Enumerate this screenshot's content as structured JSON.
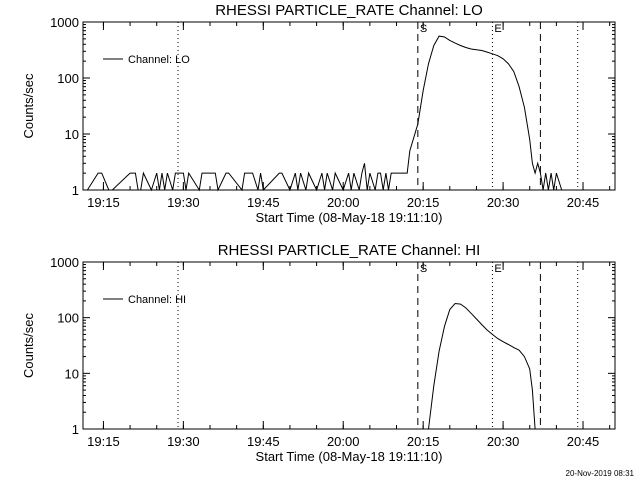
{
  "footer": {
    "timestamp": "20-Nov-2019 08:31"
  },
  "chart_data": [
    {
      "type": "line",
      "title": "RHESSI PARTICLE_RATE Channel: LO",
      "xlabel": "Start Time (08-May-18 19:11:10)",
      "ylabel": "Counts/sec",
      "yscale": "log",
      "ylim": [
        1,
        1000
      ],
      "xlim": [
        "19:11:10",
        "20:51:00"
      ],
      "x_ticks": [
        "19:15",
        "19:30",
        "19:45",
        "20:00",
        "20:15",
        "20:30",
        "20:45"
      ],
      "y_ticks": [
        "1",
        "10",
        "100",
        "1000"
      ],
      "legend": {
        "position": "top-left",
        "entries": [
          "Channel: LO"
        ]
      },
      "markers": [
        {
          "label": "S",
          "time": "20:14:00",
          "style": "dashed"
        },
        {
          "label": "E",
          "time": "20:28:00",
          "style": "dotted"
        },
        {
          "label": "",
          "time": "20:37:00",
          "style": "dashed"
        }
      ],
      "reference_lines": [
        {
          "time": "19:29:00",
          "style": "dotted"
        },
        {
          "time": "20:44:00",
          "style": "dotted"
        }
      ],
      "series": [
        {
          "name": "Channel: LO",
          "x": [
            "19:12:00",
            "19:14:00",
            "19:14:40",
            "19:16:00",
            "19:16:40",
            "19:20:00",
            "19:21:00",
            "19:21:30",
            "19:22:00",
            "19:22:30",
            "19:24:00",
            "19:25:00",
            "19:25:30",
            "19:26:00",
            "19:26:30",
            "19:27:00",
            "19:28:00",
            "19:28:30",
            "19:30:00",
            "19:30:30",
            "19:31:00",
            "19:33:00",
            "19:33:30",
            "19:34:00",
            "19:36:00",
            "19:36:30",
            "19:38:00",
            "19:38:30",
            "19:41:00",
            "19:41:30",
            "19:43:00",
            "19:44:00",
            "19:44:30",
            "19:45:00",
            "19:48:00",
            "19:48:30",
            "19:50:00",
            "19:51:00",
            "19:51:30",
            "19:52:00",
            "19:53:00",
            "19:53:30",
            "19:55:00",
            "19:56:00",
            "19:56:30",
            "19:57:00",
            "19:58:00",
            "19:58:30",
            "20:00:00",
            "20:01:00",
            "20:01:30",
            "20:02:00",
            "20:03:00",
            "20:03:30",
            "20:04:00",
            "20:04:30",
            "20:05:00",
            "20:06:00",
            "20:06:30",
            "20:07:00",
            "20:07:30",
            "20:08:00",
            "20:08:30",
            "20:09:00",
            "20:10:00",
            "20:11:00",
            "20:12:00",
            "20:12:30",
            "20:14:00",
            "20:15:00",
            "20:16:00",
            "20:17:00",
            "20:18:00",
            "20:19:00",
            "20:20:00",
            "20:21:00",
            "20:22:00",
            "20:23:00",
            "20:24:00",
            "20:25:00",
            "20:26:00",
            "20:27:00",
            "20:28:00",
            "20:29:00",
            "20:30:00",
            "20:31:00",
            "20:32:00",
            "20:33:00",
            "20:34:00",
            "20:35:00",
            "20:35:30",
            "20:36:00",
            "20:36:30",
            "20:37:00",
            "20:37:30",
            "20:38:00",
            "20:38:30",
            "20:39:00",
            "20:39:30",
            "20:40:00",
            "20:41:00"
          ],
          "y": [
            1,
            2,
            2,
            1,
            1,
            2,
            2,
            1,
            1,
            2,
            1,
            2,
            1,
            2,
            1,
            2,
            1,
            2,
            2,
            1,
            2,
            1,
            2,
            2,
            2,
            1,
            2,
            2,
            1,
            2,
            2,
            1,
            2,
            1,
            2,
            2,
            1,
            2,
            1,
            2,
            1,
            2,
            1,
            2,
            1,
            2,
            1,
            2,
            1,
            2,
            1,
            2,
            1,
            2,
            3,
            1,
            2,
            1,
            2,
            2,
            1,
            2,
            1,
            2,
            2,
            2,
            2,
            5,
            15,
            60,
            180,
            380,
            560,
            540,
            470,
            420,
            380,
            350,
            330,
            320,
            310,
            290,
            270,
            250,
            220,
            180,
            130,
            70,
            30,
            8,
            3,
            2,
            3,
            2,
            1,
            2,
            1,
            2,
            1,
            2,
            1
          ]
        }
      ]
    },
    {
      "type": "line",
      "title": "RHESSI PARTICLE_RATE Channel: HI",
      "xlabel": "Start Time (08-May-18 19:11:10)",
      "ylabel": "Counts/sec",
      "yscale": "log",
      "ylim": [
        1,
        1000
      ],
      "xlim": [
        "19:11:10",
        "20:51:00"
      ],
      "x_ticks": [
        "19:15",
        "19:30",
        "19:45",
        "20:00",
        "20:15",
        "20:30",
        "20:45"
      ],
      "y_ticks": [
        "1",
        "10",
        "100",
        "1000"
      ],
      "legend": {
        "position": "top-left",
        "entries": [
          "Channel: HI"
        ]
      },
      "markers": [
        {
          "label": "S",
          "time": "20:14:00",
          "style": "dashed"
        },
        {
          "label": "E",
          "time": "20:28:00",
          "style": "dotted"
        },
        {
          "label": "",
          "time": "20:37:00",
          "style": "dashed"
        }
      ],
      "reference_lines": [
        {
          "time": "19:29:00",
          "style": "dotted"
        },
        {
          "time": "20:44:00",
          "style": "dotted"
        }
      ],
      "series": [
        {
          "name": "Channel: HI",
          "x": [
            "20:16:00",
            "20:17:00",
            "20:18:00",
            "20:19:00",
            "20:20:00",
            "20:21:00",
            "20:22:00",
            "20:23:00",
            "20:24:00",
            "20:25:00",
            "20:26:00",
            "20:27:00",
            "20:28:00",
            "20:29:00",
            "20:30:00",
            "20:31:00",
            "20:32:00",
            "20:33:00",
            "20:34:00",
            "20:35:00",
            "20:35:30",
            "20:36:00"
          ],
          "y": [
            1,
            6,
            25,
            70,
            140,
            180,
            175,
            150,
            120,
            95,
            75,
            60,
            50,
            42,
            37,
            33,
            29,
            26,
            20,
            12,
            5,
            1
          ]
        }
      ]
    }
  ]
}
